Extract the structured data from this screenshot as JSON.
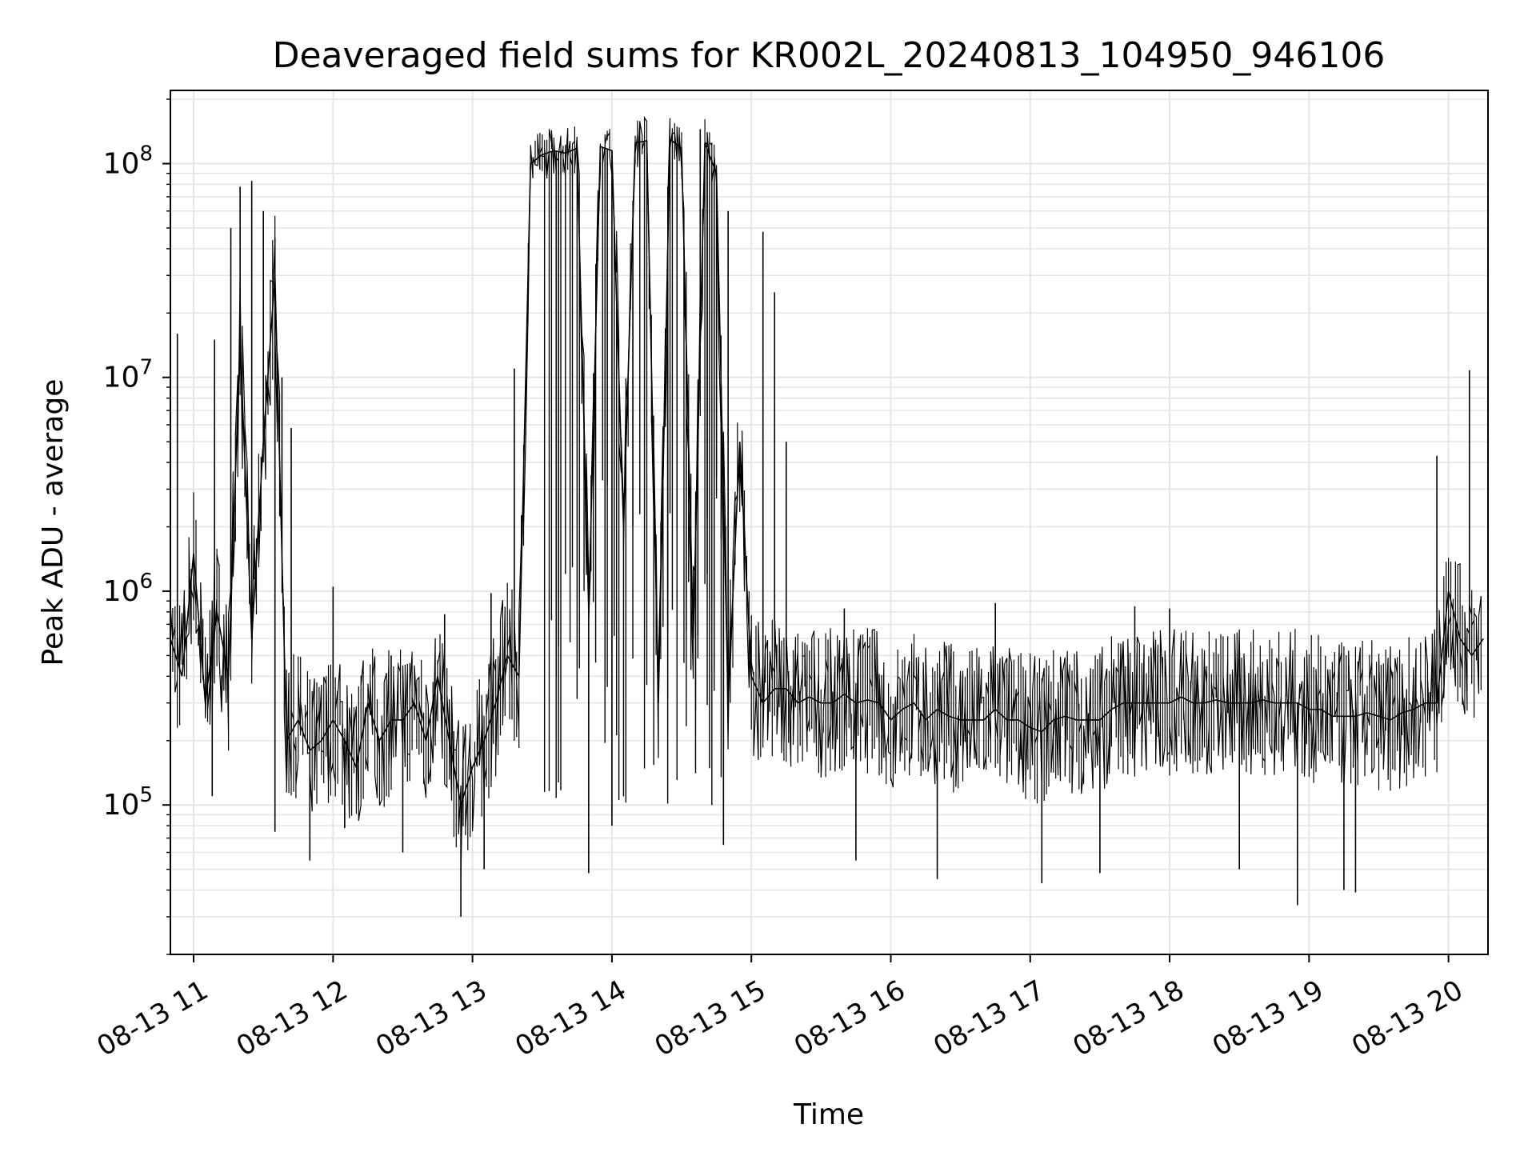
{
  "chart_data": {
    "type": "line",
    "title": "Deaveraged field sums for KR002L_20240813_104950_946106",
    "xlabel": "Time",
    "ylabel": "Peak ADU - average",
    "yscale": "log",
    "grid": true,
    "grid_minor": true,
    "legend": "none",
    "xlim": [
      "2024-08-13T10:50",
      "2024-08-13T20:17"
    ],
    "ylim": [
      20000,
      220000000
    ],
    "x_ticks": [
      {
        "label": "08-13 11",
        "value": "2024-08-13T11:00"
      },
      {
        "label": "08-13 12",
        "value": "2024-08-13T12:00"
      },
      {
        "label": "08-13 13",
        "value": "2024-08-13T13:00"
      },
      {
        "label": "08-13 14",
        "value": "2024-08-13T14:00"
      },
      {
        "label": "08-13 15",
        "value": "2024-08-13T15:00"
      },
      {
        "label": "08-13 16",
        "value": "2024-08-13T16:00"
      },
      {
        "label": "08-13 17",
        "value": "2024-08-13T17:00"
      },
      {
        "label": "08-13 18",
        "value": "2024-08-13T18:00"
      },
      {
        "label": "08-13 19",
        "value": "2024-08-13T19:00"
      },
      {
        "label": "08-13 20",
        "value": "2024-08-13T20:00"
      }
    ],
    "y_ticks": [
      {
        "base": "10",
        "exp": "5",
        "value": 100000
      },
      {
        "base": "10",
        "exp": "6",
        "value": 1000000
      },
      {
        "base": "10",
        "exp": "7",
        "value": 10000000
      },
      {
        "base": "10",
        "exp": "8",
        "value": 100000000
      }
    ],
    "line_color": "#000000",
    "grid_color": "#e6e6e6",
    "series": [
      {
        "x": [
          "2024-08-13T10:50",
          "2024-08-13T10:55",
          "2024-08-13T11:00",
          "2024-08-13T11:05",
          "2024-08-13T11:10",
          "2024-08-13T11:15",
          "2024-08-13T11:20",
          "2024-08-13T11:25",
          "2024-08-13T11:30",
          "2024-08-13T11:35",
          "2024-08-13T11:40",
          "2024-08-13T11:45",
          "2024-08-13T11:50",
          "2024-08-13T11:55",
          "2024-08-13T12:00",
          "2024-08-13T12:05",
          "2024-08-13T12:10",
          "2024-08-13T12:15",
          "2024-08-13T12:20",
          "2024-08-13T12:25",
          "2024-08-13T12:30",
          "2024-08-13T12:35",
          "2024-08-13T12:40",
          "2024-08-13T12:45",
          "2024-08-13T12:50",
          "2024-08-13T12:55",
          "2024-08-13T13:00",
          "2024-08-13T13:05",
          "2024-08-13T13:10",
          "2024-08-13T13:15",
          "2024-08-13T13:20",
          "2024-08-13T13:25",
          "2024-08-13T13:30",
          "2024-08-13T13:35",
          "2024-08-13T13:40",
          "2024-08-13T13:45",
          "2024-08-13T13:50",
          "2024-08-13T13:55",
          "2024-08-13T14:00",
          "2024-08-13T14:05",
          "2024-08-13T14:10",
          "2024-08-13T14:15",
          "2024-08-13T14:20",
          "2024-08-13T14:25",
          "2024-08-13T14:30",
          "2024-08-13T14:35",
          "2024-08-13T14:40",
          "2024-08-13T14:45",
          "2024-08-13T14:50",
          "2024-08-13T14:55",
          "2024-08-13T15:00",
          "2024-08-13T15:05",
          "2024-08-13T15:10",
          "2024-08-13T15:15",
          "2024-08-13T15:20",
          "2024-08-13T15:25",
          "2024-08-13T15:30",
          "2024-08-13T15:35",
          "2024-08-13T15:40",
          "2024-08-13T15:45",
          "2024-08-13T15:50",
          "2024-08-13T15:55",
          "2024-08-13T16:00",
          "2024-08-13T16:05",
          "2024-08-13T16:10",
          "2024-08-13T16:15",
          "2024-08-13T16:20",
          "2024-08-13T16:25",
          "2024-08-13T16:30",
          "2024-08-13T16:35",
          "2024-08-13T16:40",
          "2024-08-13T16:45",
          "2024-08-13T16:50",
          "2024-08-13T16:55",
          "2024-08-13T17:00",
          "2024-08-13T17:05",
          "2024-08-13T17:10",
          "2024-08-13T17:15",
          "2024-08-13T17:20",
          "2024-08-13T17:25",
          "2024-08-13T17:30",
          "2024-08-13T17:35",
          "2024-08-13T17:40",
          "2024-08-13T17:45",
          "2024-08-13T17:50",
          "2024-08-13T17:55",
          "2024-08-13T18:00",
          "2024-08-13T18:05",
          "2024-08-13T18:10",
          "2024-08-13T18:15",
          "2024-08-13T18:20",
          "2024-08-13T18:25",
          "2024-08-13T18:30",
          "2024-08-13T18:35",
          "2024-08-13T18:40",
          "2024-08-13T18:45",
          "2024-08-13T18:50",
          "2024-08-13T18:55",
          "2024-08-13T19:00",
          "2024-08-13T19:05",
          "2024-08-13T19:10",
          "2024-08-13T19:15",
          "2024-08-13T19:20",
          "2024-08-13T19:25",
          "2024-08-13T19:30",
          "2024-08-13T19:35",
          "2024-08-13T19:40",
          "2024-08-13T19:45",
          "2024-08-13T19:50",
          "2024-08-13T19:55",
          "2024-08-13T20:00",
          "2024-08-13T20:05",
          "2024-08-13T20:10",
          "2024-08-13T20:15"
        ],
        "y": [
          600000,
          400000,
          1500000,
          300000,
          800000,
          400000,
          15000000,
          600000,
          5000000,
          30000000,
          200000,
          250000,
          180000,
          200000,
          250000,
          200000,
          150000,
          300000,
          200000,
          250000,
          250000,
          300000,
          200000,
          400000,
          200000,
          100000,
          150000,
          200000,
          300000,
          500000,
          400000,
          100000000,
          110000000,
          115000000,
          112000000,
          118000000,
          800000,
          120000000,
          115000000,
          2000000,
          125000000,
          128000000,
          300000,
          130000000,
          118000000,
          600000,
          125000000,
          90000000,
          300000,
          5000000,
          400000,
          300000,
          350000,
          350000,
          300000,
          320000,
          300000,
          300000,
          330000,
          300000,
          310000,
          300000,
          250000,
          280000,
          300000,
          250000,
          280000,
          260000,
          250000,
          250000,
          250000,
          280000,
          250000,
          250000,
          230000,
          220000,
          250000,
          260000,
          250000,
          250000,
          250000,
          280000,
          300000,
          300000,
          300000,
          300000,
          300000,
          320000,
          300000,
          300000,
          310000,
          300000,
          300000,
          300000,
          310000,
          300000,
          300000,
          300000,
          280000,
          280000,
          260000,
          260000,
          260000,
          270000,
          260000,
          250000,
          270000,
          280000,
          300000,
          300000,
          1000000,
          600000,
          500000,
          600000
        ],
        "spikes_high": [
          [
            "2024-08-13T10:53",
            16000000
          ],
          [
            "2024-08-13T11:09",
            15000000
          ],
          [
            "2024-08-13T11:16",
            50000000
          ],
          [
            "2024-08-13T11:20",
            78000000
          ],
          [
            "2024-08-13T11:25",
            83000000
          ],
          [
            "2024-08-13T11:30",
            60000000
          ],
          [
            "2024-08-13T11:35",
            45000000
          ],
          [
            "2024-08-13T11:38",
            10000000
          ],
          [
            "2024-08-13T11:42",
            5800000
          ],
          [
            "2024-08-13T12:00",
            1050000
          ],
          [
            "2024-08-13T12:25",
            500000
          ],
          [
            "2024-08-13T12:48",
            780000
          ],
          [
            "2024-08-13T13:08",
            980000
          ],
          [
            "2024-08-13T13:18",
            11000000
          ],
          [
            "2024-08-13T14:38",
            145000000
          ],
          [
            "2024-08-13T14:50",
            60000000
          ],
          [
            "2024-08-13T15:05",
            48000000
          ],
          [
            "2024-08-13T15:10",
            25000000
          ],
          [
            "2024-08-13T15:15",
            5000000
          ],
          [
            "2024-08-13T15:40",
            830000
          ],
          [
            "2024-08-13T16:45",
            880000
          ],
          [
            "2024-08-13T17:45",
            850000
          ],
          [
            "2024-08-13T18:00",
            830000
          ],
          [
            "2024-08-13T19:55",
            4300000
          ],
          [
            "2024-08-13T20:09",
            10800000
          ]
        ],
        "spikes_low": [
          [
            "2024-08-13T11:08",
            110000
          ],
          [
            "2024-08-13T11:35",
            75000
          ],
          [
            "2024-08-13T11:50",
            55000
          ],
          [
            "2024-08-13T12:05",
            78000
          ],
          [
            "2024-08-13T12:30",
            60000
          ],
          [
            "2024-08-13T12:55",
            30000
          ],
          [
            "2024-08-13T13:05",
            50000
          ],
          [
            "2024-08-13T13:50",
            48000
          ],
          [
            "2024-08-13T14:00",
            80000
          ],
          [
            "2024-08-13T14:48",
            65000
          ],
          [
            "2024-08-13T15:45",
            55000
          ],
          [
            "2024-08-13T16:20",
            45000
          ],
          [
            "2024-08-13T17:05",
            43000
          ],
          [
            "2024-08-13T17:30",
            48000
          ],
          [
            "2024-08-13T18:30",
            50000
          ],
          [
            "2024-08-13T18:55",
            34000
          ],
          [
            "2024-08-13T19:15",
            40000
          ],
          [
            "2024-08-13T19:20",
            39000
          ]
        ]
      }
    ]
  }
}
